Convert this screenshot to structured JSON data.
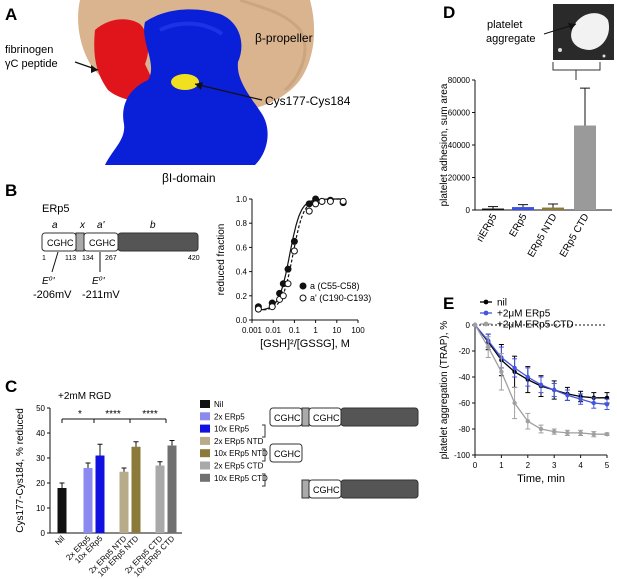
{
  "panels": {
    "A": {
      "letter": "A",
      "labels": {
        "fibrinogen_line1": "fibrinogen",
        "fibrinogen_line2": "γC peptide",
        "propeller": "β-propeller",
        "cys": "Cys177-Cys184",
        "domain": "βI-domain"
      },
      "colors": {
        "beige": "#d9b48f",
        "blue": "#0a1fd8",
        "red": "#e0141b",
        "yellow": "#f0e020"
      }
    },
    "B": {
      "letter": "B",
      "title": "ERp5",
      "domains": {
        "a": "a",
        "x": "x",
        "a_prime": "a'",
        "b": "b",
        "cghc1": "CGHC",
        "cghc2": "CGHC"
      },
      "positions": [
        "1",
        "113",
        "134",
        "267",
        "420"
      ],
      "e1": "E⁰'",
      "e1_val": "-206mV",
      "e2": "E⁰'",
      "e2_val": "-211mV"
    },
    "C": {
      "letter": "C",
      "condition": "+2mM RGD",
      "sig": [
        "*",
        "****",
        "****"
      ],
      "legend": [
        "Nil",
        "2x ERp5",
        "10x ERp5",
        "2x ERp5 NTD",
        "10x ERp5 NTD",
        "2x ERp5 CTD",
        "10x ERp5 CTD"
      ],
      "constructs": {
        "full": [
          "CGHC",
          "CGHC"
        ],
        "ntd": "CGHC",
        "ctd": "CGHC"
      }
    },
    "D": {
      "letter": "D",
      "inset_label_1": "platelet",
      "inset_label_2": "aggregate"
    },
    "E": {
      "letter": "E",
      "legend": [
        "nil",
        "+2μM ERp5",
        "+2μM ERp5 CTD"
      ]
    }
  },
  "chart_data": [
    {
      "id": "B-curve",
      "type": "scatter",
      "xlabel": "[GSH]²/[GSSG], M",
      "ylabel": "reduced fraction",
      "xscale": "log",
      "xlim": [
        0.001,
        100
      ],
      "ylim": [
        0,
        1.0
      ],
      "xticks": [
        "0.001",
        "0.01",
        "0.1",
        "1",
        "10",
        "100"
      ],
      "yticks": [
        "0.0",
        "0.2",
        "0.4",
        "0.6",
        "0.8",
        "1.0"
      ],
      "legend_position": "bottom-right",
      "series": [
        {
          "name": "a (C55-C58)",
          "marker": "filled",
          "x": [
            0.002,
            0.009,
            0.02,
            0.03,
            0.05,
            0.1,
            0.5,
            1,
            2,
            5,
            20
          ],
          "y": [
            0.11,
            0.14,
            0.22,
            0.3,
            0.42,
            0.65,
            0.96,
            1.0,
            0.98,
            0.99,
            0.97
          ]
        },
        {
          "name": "a' (C190-C193)",
          "marker": "open",
          "x": [
            0.002,
            0.009,
            0.02,
            0.03,
            0.05,
            0.1,
            0.5,
            1,
            2,
            5,
            20
          ],
          "y": [
            0.09,
            0.11,
            0.17,
            0.2,
            0.3,
            0.57,
            0.9,
            0.96,
            0.98,
            0.98,
            0.98
          ]
        }
      ]
    },
    {
      "id": "C-bars",
      "type": "bar",
      "ylabel": "Cys177-Cys184, % reduced",
      "ylim": [
        0,
        50
      ],
      "yticks": [
        "0",
        "10",
        "20",
        "30",
        "40",
        "50"
      ],
      "categories": [
        "Nil",
        "2x ERp5",
        "10x ERp5",
        "2x ERp5 NTD",
        "10x ERp5 NTD",
        "2x ERp5 CTD",
        "10x ERp5 CTD"
      ],
      "values": [
        18,
        26,
        31,
        24.5,
        34.5,
        27,
        35
      ],
      "errors": [
        2,
        2,
        4.5,
        1.5,
        2,
        1.5,
        2
      ],
      "colors": [
        "#111111",
        "#8a8af0",
        "#1010e0",
        "#b7ab8a",
        "#8c7a3a",
        "#a9a9a9",
        "#707070"
      ]
    },
    {
      "id": "D-bars",
      "type": "bar",
      "ylabel": "platelet adhesion, sum area",
      "ylim": [
        0,
        80000
      ],
      "yticks": [
        "0",
        "20000",
        "40000",
        "60000",
        "80000"
      ],
      "categories": [
        "riERp5",
        "ERp5",
        "ERp5 NTD",
        "ERp5 CTD"
      ],
      "values": [
        900,
        1800,
        1500,
        52000
      ],
      "errors": [
        1200,
        1500,
        2200,
        23000
      ],
      "colors": [
        "#111111",
        "#3c50e0",
        "#8a7a3a",
        "#9a9a9a"
      ]
    },
    {
      "id": "E-lines",
      "type": "line",
      "xlabel": "Time, min",
      "ylabel": "platelet aggregation (TRAP), %",
      "xlim": [
        0,
        5
      ],
      "ylim": [
        -100,
        0
      ],
      "xticks": [
        "0",
        "1",
        "2",
        "3",
        "4",
        "5"
      ],
      "yticks": [
        "0",
        "-20",
        "-40",
        "-60",
        "-80",
        "-100"
      ],
      "legend_position": "top-left",
      "x": [
        0,
        0.5,
        1,
        1.5,
        2,
        2.5,
        3,
        3.5,
        4,
        4.5,
        5
      ],
      "series": [
        {
          "name": "nil",
          "color": "#000000",
          "y": [
            0,
            -13,
            -27,
            -36,
            -42,
            -47,
            -50,
            -53,
            -55,
            -56,
            -56
          ],
          "err": [
            0,
            6,
            12,
            12,
            10,
            8,
            7,
            5,
            4,
            4,
            4
          ]
        },
        {
          "name": "+2μM ERp5",
          "color": "#4455e0",
          "y": [
            0,
            -12,
            -25,
            -33,
            -40,
            -46,
            -50,
            -54,
            -57,
            -60,
            -61
          ],
          "err": [
            0,
            5,
            8,
            7,
            7,
            6,
            5,
            4,
            4,
            4,
            4
          ]
        },
        {
          "name": "+2μM ERp5 CTD",
          "color": "#a0a0a0",
          "y": [
            0,
            -17,
            -36,
            -60,
            -74,
            -80,
            -82,
            -83,
            -83,
            -84,
            -84
          ],
          "err": [
            0,
            8,
            14,
            12,
            6,
            3,
            2,
            2,
            2,
            2,
            1
          ]
        }
      ]
    }
  ]
}
